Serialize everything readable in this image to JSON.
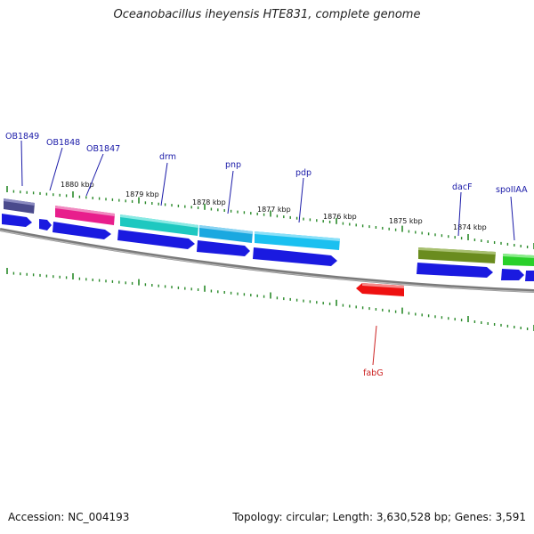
{
  "title": "Oceanobacillus iheyensis HTE831, complete genome",
  "footer": {
    "accession": "Accession: NC_004193",
    "stats": "Topology: circular; Length: 3,630,528 bp; Genes: 3,591"
  },
  "colors": {
    "backbone": "#8a8a8a",
    "tick": "#2a8a2a",
    "cds": "#1a1ae0",
    "label": "#1a1aa8",
    "label_red": "#cc2222"
  },
  "scale_labels": [
    "1880 kbp",
    "1879 kbp",
    "1878 kbp",
    "1877 kbp",
    "1876 kbp",
    "1875 kbp",
    "1874 kbp"
  ],
  "genes": [
    {
      "name": "OB1849",
      "color": "#4a4a8c"
    },
    {
      "name": "OB1848",
      "color": "#e81e8c"
    },
    {
      "name": "OB1847",
      "color": "#7a7ad0"
    },
    {
      "name": "drm",
      "color": "#1ec8c0"
    },
    {
      "name": "pnp",
      "color": "#1aa8e0"
    },
    {
      "name": "pdp",
      "color": "#1ac0f0"
    },
    {
      "name": "dacF",
      "color": "#6a8c1e"
    },
    {
      "name": "spoIIAA",
      "color": "#2ad02a"
    },
    {
      "name": "fabG",
      "color": "#ee1111"
    }
  ]
}
